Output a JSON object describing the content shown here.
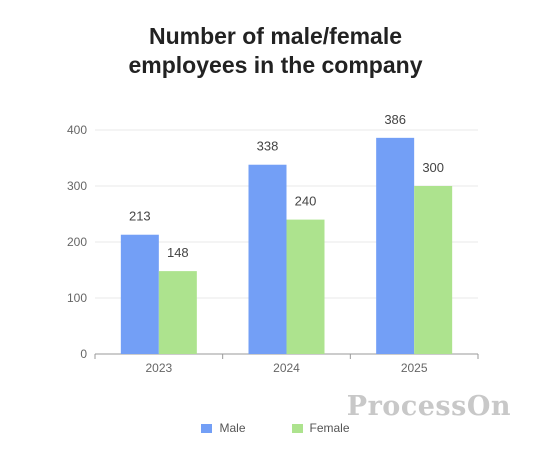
{
  "chart_data": {
    "type": "bar",
    "title": "Number of male/female employees in the company",
    "title_lines": [
      "Number of male/female",
      "employees in the company"
    ],
    "categories": [
      "2023",
      "2024",
      "2025"
    ],
    "series": [
      {
        "name": "Male",
        "values": [
          213,
          338,
          386
        ],
        "color": "#739ff6"
      },
      {
        "name": "Female",
        "values": [
          148,
          240,
          300
        ],
        "color": "#ade38e"
      }
    ],
    "yticks": [
      "0",
      "100",
      "200",
      "300",
      "400"
    ],
    "ylim": [
      0,
      400
    ],
    "grid": true,
    "legend": "bottom-center",
    "watermark": "ProcessOn"
  }
}
